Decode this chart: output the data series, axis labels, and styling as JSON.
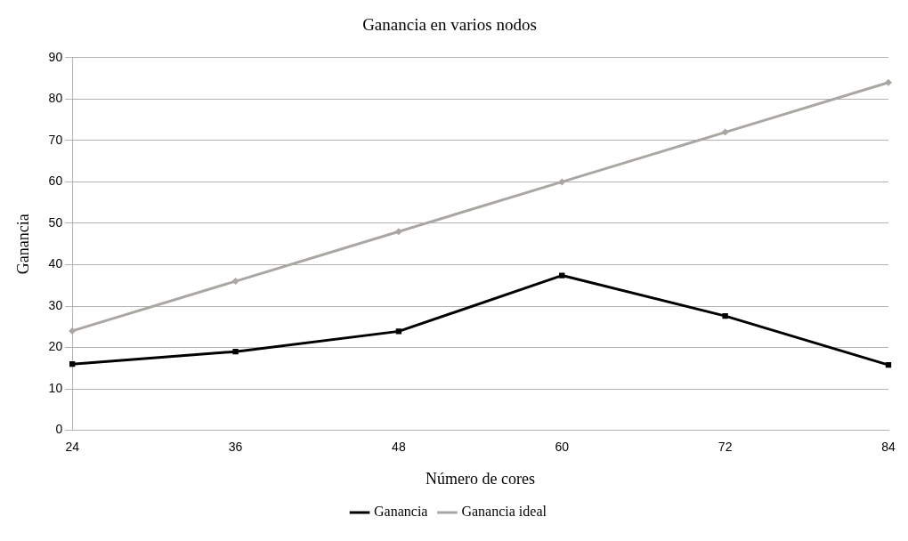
{
  "chart_data": {
    "type": "line",
    "title": "Ganancia en varios nodos",
    "xlabel": "Número de cores",
    "ylabel": "Ganancia",
    "categories": [
      "24",
      "36",
      "48",
      "60",
      "72",
      "84"
    ],
    "series": [
      {
        "name": "Ganancia",
        "color": "#000000",
        "marker": "square",
        "values": [
          16,
          19,
          23.9,
          37.4,
          27.6,
          15.8
        ]
      },
      {
        "name": "Ganancia ideal",
        "color": "#aaa6a2",
        "marker": "diamond",
        "values": [
          24,
          36,
          48,
          60,
          72,
          84
        ]
      }
    ],
    "ylim": [
      0,
      90
    ],
    "yticks": [
      0,
      10,
      20,
      30,
      40,
      50,
      60,
      70,
      80,
      90
    ],
    "grid": "y",
    "legend": "bottom",
    "line_style": "solid"
  }
}
